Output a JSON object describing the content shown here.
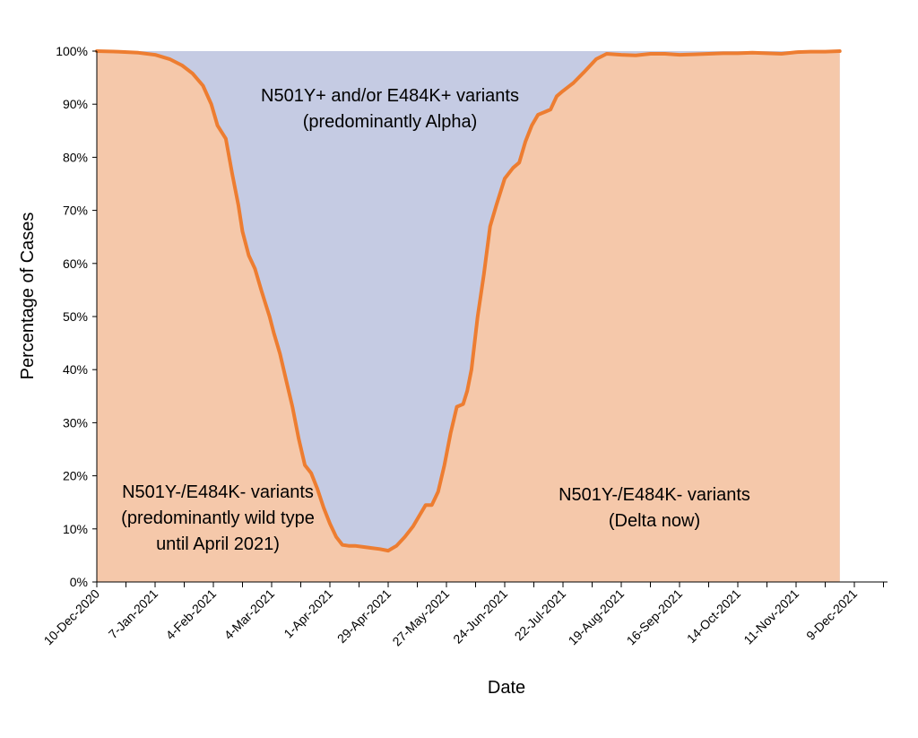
{
  "chart_data": {
    "type": "area",
    "title": "",
    "xlabel": "Date",
    "ylabel": "Percentage of Cases",
    "ylim": [
      0,
      100
    ],
    "xlim": [
      "2020-12-10",
      "2021-12-30"
    ],
    "y_ticks": [
      "0%",
      "10%",
      "20%",
      "30%",
      "40%",
      "50%",
      "60%",
      "70%",
      "80%",
      "90%",
      "100%"
    ],
    "x_ticks": [
      "10-Dec-2020",
      "7-Jan-2021",
      "4-Feb-2021",
      "4-Mar-2021",
      "1-Apr-2021",
      "29-Apr-2021",
      "27-May-2021",
      "24-Jun-2021",
      "22-Jul-2021",
      "19-Aug-2021",
      "16-Sep-2021",
      "14-Oct-2021",
      "11-Nov-2021",
      "9-Dec-2021"
    ],
    "grid": false,
    "colors": {
      "lower_area": "#F5C8AA",
      "upper_area": "#C5CBE3",
      "line": "#ED7D31"
    },
    "annotations": {
      "upper": [
        "N501Y+ and/or E484K+ variants",
        "(predominantly Alpha)"
      ],
      "lower_left": [
        "N501Y-/E484K- variants",
        "(predominantly wild type",
        "until April 2021)"
      ],
      "lower_right": [
        "N501Y-/E484K- variants",
        "(Delta now)"
      ]
    },
    "series": [
      {
        "x": [
          "2020-12-10",
          "2020-12-20",
          "2020-12-30",
          "2021-01-07",
          "2021-01-14",
          "2021-01-20",
          "2021-01-25",
          "2021-01-30",
          "2021-02-03",
          "2021-02-06",
          "2021-02-10",
          "2021-02-13",
          "2021-02-16",
          "2021-02-18",
          "2021-02-21",
          "2021-02-24",
          "2021-02-27",
          "2021-03-01",
          "2021-03-03",
          "2021-03-05",
          "2021-03-08",
          "2021-03-11",
          "2021-03-14",
          "2021-03-17",
          "2021-03-20",
          "2021-03-23",
          "2021-03-26",
          "2021-03-29",
          "2021-04-01",
          "2021-04-04",
          "2021-04-07",
          "2021-04-10",
          "2021-04-13",
          "2021-04-17",
          "2021-04-21",
          "2021-04-25",
          "2021-04-29",
          "2021-05-03",
          "2021-05-07",
          "2021-05-11",
          "2021-05-14",
          "2021-05-17",
          "2021-05-20",
          "2021-05-23",
          "2021-05-26",
          "2021-05-29",
          "2021-06-01",
          "2021-06-04",
          "2021-06-06",
          "2021-06-08",
          "2021-06-11",
          "2021-06-14",
          "2021-06-17",
          "2021-06-20",
          "2021-06-24",
          "2021-06-28",
          "2021-07-01",
          "2021-07-04",
          "2021-07-07",
          "2021-07-10",
          "2021-07-13",
          "2021-07-16",
          "2021-07-19",
          "2021-07-22",
          "2021-07-27",
          "2021-08-01",
          "2021-08-07",
          "2021-08-12",
          "2021-08-19",
          "2021-08-26",
          "2021-09-02",
          "2021-09-09",
          "2021-09-16",
          "2021-09-23",
          "2021-09-30",
          "2021-10-07",
          "2021-10-14",
          "2021-10-21",
          "2021-10-28",
          "2021-11-04",
          "2021-11-11",
          "2021-11-18",
          "2021-11-25",
          "2021-12-02"
        ],
        "y": [
          100,
          99.9,
          99.7,
          99.3,
          98.5,
          97.3,
          95.8,
          93.5,
          90,
          86,
          83.5,
          77,
          71,
          66,
          61.5,
          59,
          55,
          52.5,
          50,
          47,
          43,
          38,
          33,
          27,
          22,
          20.5,
          17.5,
          14,
          11,
          8.5,
          7,
          6.8,
          6.8,
          6.6,
          6.4,
          6.2,
          5.9,
          6.8,
          8.5,
          10.5,
          12.5,
          14.5,
          14.5,
          17,
          22,
          28,
          33,
          33.5,
          36,
          40,
          50,
          58,
          67,
          71,
          76,
          78,
          79,
          83,
          86,
          88,
          88.5,
          89,
          91.5,
          92.5,
          94,
          96,
          98.5,
          99.5,
          99.3,
          99.2,
          99.5,
          99.5,
          99.3,
          99.4,
          99.5,
          99.6,
          99.6,
          99.7,
          99.6,
          99.5,
          99.8,
          99.9,
          99.9,
          100
        ]
      }
    ]
  }
}
